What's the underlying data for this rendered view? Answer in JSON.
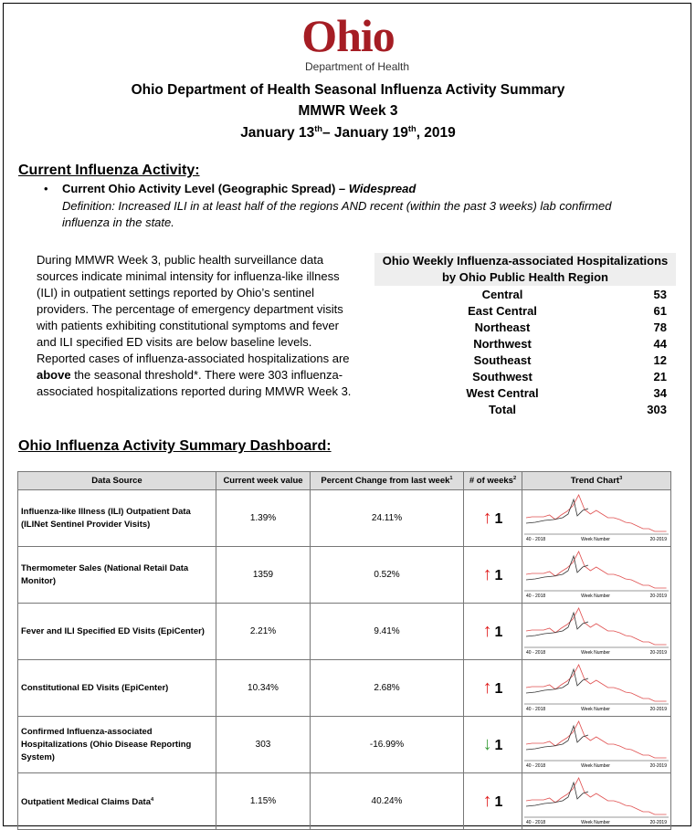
{
  "header": {
    "logo": "Ohio",
    "department": "Department of Health",
    "title": "Ohio Department of Health Seasonal Influenza Activity Summary",
    "week": "MMWR Week 3",
    "date": {
      "start": "January 13",
      "start_sup": "th",
      "end": "– January 19",
      "end_sup": "th",
      "year": ", 2019"
    }
  },
  "current_activity": {
    "heading": "Current Influenza Activity:",
    "bullet_label": "Current Ohio Activity Level (Geographic Spread) – ",
    "level": "Widespread",
    "definition": "Definition:  Increased ILI in at least half of the regions AND recent (within the past 3 weeks) lab confirmed influenza in the state."
  },
  "summary": {
    "before": "During MMWR Week 3, public health surveillance data sources indicate minimal intensity for influenza-like illness (ILI) in outpatient settings reported by Ohio’s sentinel providers.  The percentage of emergency department visits with patients exhibiting constitutional symptoms and fever and ILI specified ED visits are below baseline levels. Reported cases of influenza-associated hospitalizations are ",
    "bold": "above",
    "after": " the seasonal threshold*. There were 303 influenza-associated hospitalizations reported during MMWR Week 3."
  },
  "hospitalizations": {
    "title": "Ohio Weekly Influenza-associated Hospitalizations",
    "subtitle": "by Ohio Public Health Region",
    "rows": [
      [
        "Central",
        "53"
      ],
      [
        "East Central",
        "61"
      ],
      [
        "Northeast",
        "78"
      ],
      [
        "Northwest",
        "44"
      ],
      [
        "Southeast",
        "12"
      ],
      [
        "Southwest",
        "21"
      ],
      [
        "West Central",
        "34"
      ]
    ],
    "total": [
      "Total",
      "303"
    ]
  },
  "dashboard": {
    "heading": "Ohio Influenza Activity Summary Dashboard:",
    "columns": [
      {
        "label": "Data Source"
      },
      {
        "label": "Current week value"
      },
      {
        "label": "Percent Change from last week",
        "sup": "1"
      },
      {
        "label": "# of weeks",
        "sup": "2"
      },
      {
        "label": "Trend Chart",
        "sup": "3"
      }
    ],
    "trend_axis": {
      "start": "40 - 2018",
      "middle": "Week Number",
      "end": "20-2019"
    },
    "rows": [
      {
        "source": "Influenza-like Illness (ILI) Outpatient Data (ILINet Sentinel Provider Visits)",
        "current": "1.39%",
        "change": "24.11%",
        "arrow": "↑",
        "weeks": "1"
      },
      {
        "source": "Thermometer Sales (National Retail Data Monitor)",
        "current": "1359",
        "change": "0.52%",
        "arrow": "↑",
        "weeks": "1"
      },
      {
        "source": "Fever and ILI Specified ED Visits (EpiCenter)",
        "current": "2.21%",
        "change": "9.41%",
        "arrow": "↑",
        "weeks": "1"
      },
      {
        "source": "Constitutional ED Visits (EpiCenter)",
        "current": "10.34%",
        "change": "2.68%",
        "arrow": "↑",
        "weeks": "1"
      },
      {
        "source": "Confirmed Influenza-associated Hospitalizations (Ohio Disease Reporting System)",
        "current": "303",
        "change": "-16.99%",
        "arrow": "↓",
        "weeks": "1"
      },
      {
        "source": "Outpatient Medical Claims Data",
        "source_sup": "4",
        "current": "1.15%",
        "change": "40.24%",
        "arrow": "↑",
        "weeks": "1"
      }
    ]
  }
}
